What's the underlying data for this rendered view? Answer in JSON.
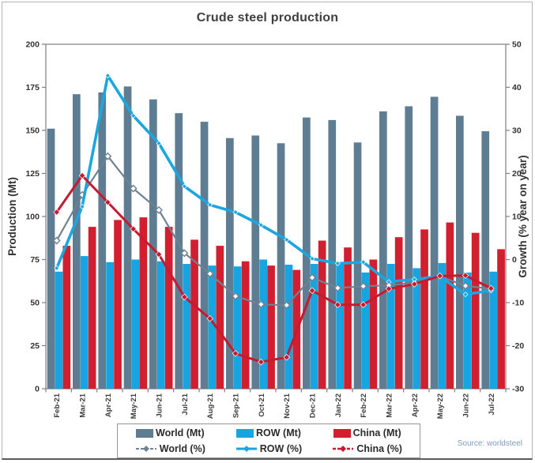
{
  "page": {
    "title": "Crude steel production",
    "source_note": "Source: worldsteel"
  },
  "legend": {
    "items": [
      {
        "label": "World (Mt)",
        "kind": "bar",
        "color": "#5e7d92"
      },
      {
        "label": "ROW (Mt)",
        "kind": "bar",
        "color": "#17a5e2"
      },
      {
        "label": "China (Mt)",
        "kind": "bar",
        "color": "#d21f2f"
      },
      {
        "label": "World (%)",
        "kind": "line",
        "color": "#6e8292",
        "line_style": "dashed",
        "marker": "diamond"
      },
      {
        "label": "ROW (%)",
        "kind": "line",
        "color": "#17a5e2",
        "line_style": "solid",
        "marker": "diamond"
      },
      {
        "label": "China (%)",
        "kind": "line",
        "color": "#c51a2f",
        "line_style": "dashed",
        "marker": "diamond"
      }
    ]
  },
  "chart_data": {
    "type": "combo-bar-line",
    "title": "Crude steel production",
    "categories": [
      "Feb-21",
      "Mar-21",
      "Apr-21",
      "May-21",
      "Jun-21",
      "Jul-21",
      "Aug-21",
      "Sep-21",
      "Oct-21",
      "Nov-21",
      "Dec-21",
      "Jan-22",
      "Feb-22",
      "Mar-22",
      "Apr-22",
      "May-22",
      "Jun-22",
      "Jul-22"
    ],
    "series": [
      {
        "name": "World (Mt)",
        "type": "bar",
        "axis": "left",
        "color": "#5e7d92",
        "values": [
          151,
          171,
          172,
          175.5,
          168,
          160,
          155,
          145.5,
          147,
          142.5,
          157.5,
          156,
          143,
          161,
          164,
          169.5,
          158.5,
          149.5
        ]
      },
      {
        "name": "ROW (Mt)",
        "type": "bar",
        "axis": "left",
        "color": "#17a5e2",
        "values": [
          68,
          77,
          73.5,
          75,
          74,
          72.5,
          71.5,
          71,
          75,
          72,
          72.5,
          73,
          67.5,
          72.5,
          70,
          73,
          67.5,
          68
        ]
      },
      {
        "name": "China (Mt)",
        "type": "bar",
        "axis": "left",
        "color": "#d21f2f",
        "values": [
          83,
          94,
          98,
          99.5,
          94,
          86.5,
          83,
          74,
          71.5,
          69,
          86,
          82,
          75,
          88,
          92.5,
          96.5,
          90.5,
          81
        ]
      },
      {
        "name": "World (%)",
        "type": "line",
        "axis": "right",
        "color": "#6e8292",
        "marker": "open-diamond",
        "values": [
          4.4,
          15,
          24,
          16.5,
          11.5,
          1.5,
          -3.3,
          -8.5,
          -10.4,
          -10.6,
          -4.2,
          -6.6,
          -6.2,
          -6,
          -5.3,
          -3.9,
          -6.1,
          -6.8
        ]
      },
      {
        "name": "ROW (%)",
        "type": "line",
        "axis": "right",
        "color": "#1ca6e0",
        "marker": "diamond",
        "values": [
          -2,
          12.3,
          42.7,
          33.4,
          27,
          17,
          12.7,
          11,
          8,
          4.6,
          0.2,
          -0.9,
          -0.6,
          -5.2,
          -4.6,
          -3.9,
          -8.1,
          -7.2
        ]
      },
      {
        "name": "China (%)",
        "type": "line",
        "axis": "right",
        "color": "#c51a2f",
        "marker": "diamond",
        "values": [
          11,
          19.5,
          13.3,
          7.1,
          1.2,
          -8.7,
          -13.7,
          -21.8,
          -23.8,
          -22.7,
          -7.2,
          -10.5,
          -10.5,
          -6.8,
          -5.7,
          -3.8,
          -3.7,
          -6.7
        ]
      }
    ],
    "left_axis": {
      "label": "Production (Mt)",
      "min": 0,
      "max": 200,
      "step": 25,
      "ticks": [
        0,
        25,
        50,
        75,
        100,
        125,
        150,
        175,
        200
      ]
    },
    "right_axis": {
      "label": "Growth (% year on year)",
      "min": -30,
      "max": 50,
      "step": 10,
      "ticks": [
        -30,
        -20,
        -10,
        0,
        10,
        20,
        30,
        40,
        50
      ]
    },
    "grid": false,
    "legend_position": "bottom"
  }
}
